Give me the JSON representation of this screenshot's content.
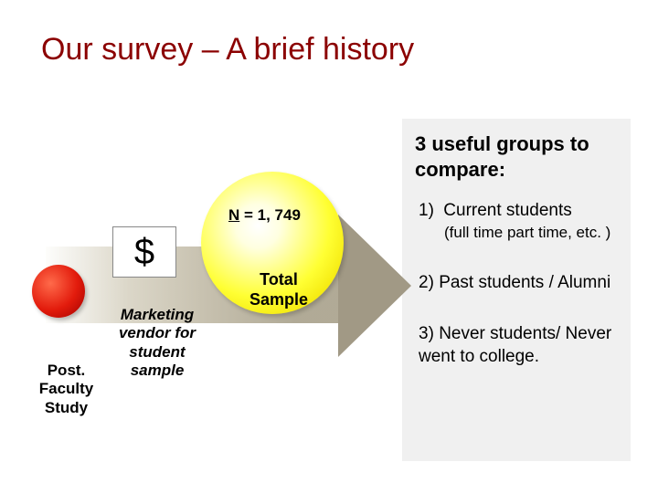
{
  "title": "Our survey – A brief history",
  "title_color": "#8b0000",
  "panel": {
    "heading": "3 useful groups to compare:",
    "bg": "#f0f0f0",
    "groups": [
      {
        "num": "1)",
        "text": "Current students",
        "sub": "(full time part time, etc. )"
      },
      {
        "num": "2)",
        "text": "Past students / Alumni",
        "sub": ""
      },
      {
        "num": "3)",
        "text": "Never students/ Never went to college.",
        "sub": ""
      }
    ]
  },
  "arrow": {
    "body_gradient_end": "#a8a18b",
    "head_color": "#9c947e"
  },
  "red_circle": {
    "label": "Post. Faculty Study",
    "color_center": "#ff6a4a",
    "color_edge": "#a00000"
  },
  "dollar": {
    "symbol": "$",
    "caption": "Marketing vendor for student sample"
  },
  "yellow_circle": {
    "n_prefix": "N",
    "n_text": " = 1, 749",
    "total_line1": "Total",
    "total_line2": "Sample",
    "color_center": "#ffff33",
    "color_edge": "#d8c800"
  }
}
